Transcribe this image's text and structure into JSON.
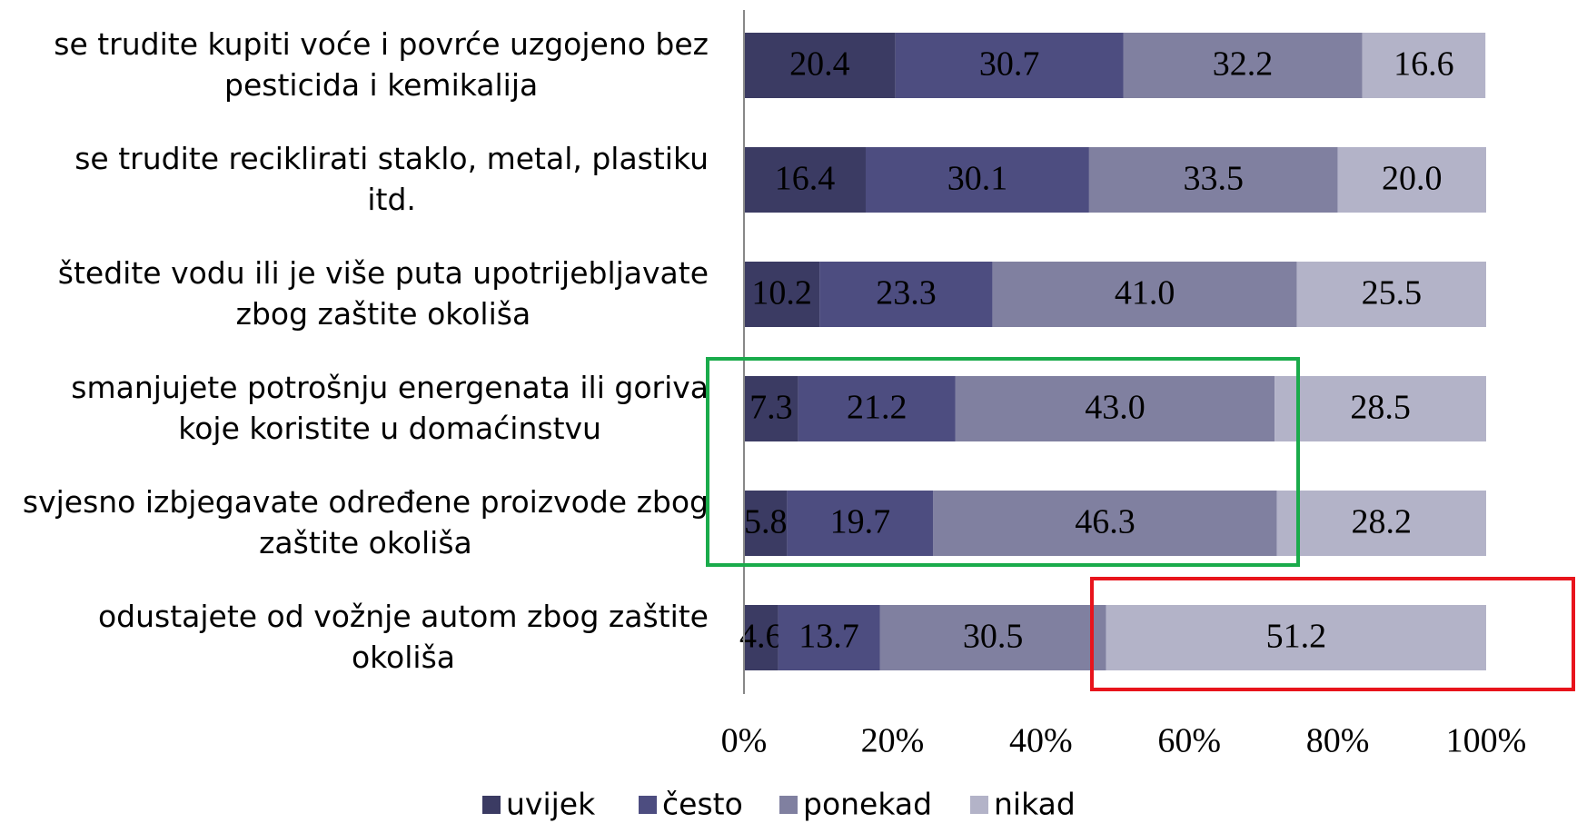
{
  "chart_data": {
    "type": "stacked_barh",
    "categories": [
      "se trudite kupiti voće i povrće uzgojeno bez\npesticida i kemikalija",
      "se trudite reciklirati staklo, metal, plastiku\nitd.",
      "štedite vodu ili je više puta upotrijebljavate\nzbog zaštite okoliša",
      "smanjujete potrošnju energenata ili goriva\nkoje koristite u domaćinstvu",
      "svjesno izbjegavate određene proizvode zbog\nzaštite okoliša",
      "odustajete od vožnje autom zbog zaštite\nokoliša"
    ],
    "series": [
      {
        "name": "uvijek",
        "color": "#3b3b63",
        "values": [
          20.4,
          16.4,
          10.2,
          7.3,
          5.8,
          4.6
        ],
        "value_labels": [
          "20.4",
          "16.4",
          "10.2",
          "7.3",
          "5.8",
          "4.6"
        ]
      },
      {
        "name": "često",
        "color": "#4d4d80",
        "values": [
          30.7,
          30.1,
          23.3,
          21.2,
          19.7,
          13.7
        ],
        "value_labels": [
          "30.7",
          "30.1",
          "23.3",
          "21.2",
          "19.7",
          "13.7"
        ]
      },
      {
        "name": "ponekad",
        "color": "#8080a0",
        "values": [
          32.2,
          33.5,
          41.0,
          43.0,
          46.3,
          30.5
        ],
        "value_labels": [
          "32.2",
          "33.5",
          "41.0",
          "43.0",
          "46.3",
          "30.5"
        ]
      },
      {
        "name": "nikad",
        "color": "#b3b3c8",
        "values": [
          16.6,
          20.0,
          25.5,
          28.5,
          28.2,
          51.2
        ],
        "value_labels": [
          "16.6",
          "20.0",
          "25.5",
          "28.5",
          "28.2",
          "51.2"
        ]
      }
    ],
    "xlim": [
      0,
      100
    ],
    "xticks": [
      {
        "value": 0,
        "label": "0%"
      },
      {
        "value": 20,
        "label": "20%"
      },
      {
        "value": 40,
        "label": "40%"
      },
      {
        "value": 60,
        "label": "60%"
      },
      {
        "value": 80,
        "label": "80%"
      },
      {
        "value": 100,
        "label": "100%"
      }
    ],
    "legend": "bottom"
  }
}
